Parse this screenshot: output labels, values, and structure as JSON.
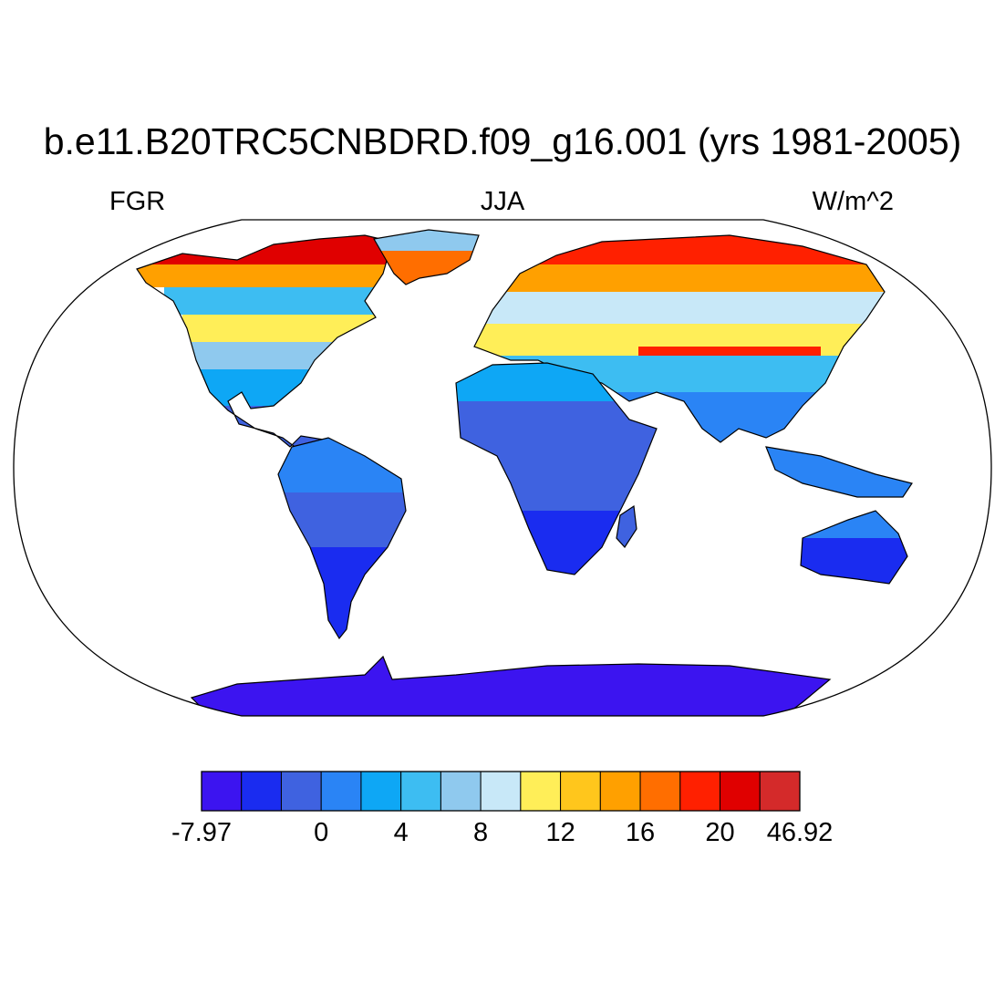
{
  "header": {
    "title": "b.e11.B20TRC5CNBDRD.f09_g16.001 (yrs 1981-2005)",
    "left_label": "FGR",
    "center_label": "JJA",
    "right_label": "W/m^2"
  },
  "colorbar": {
    "colors": [
      "#3c14f0",
      "#1a2cf0",
      "#3f62e0",
      "#2a84f5",
      "#0ea7f5",
      "#3dbdf2",
      "#8fc9ee",
      "#c8e8f8",
      "#ffee58",
      "#ffc61c",
      "#ffa000",
      "#ff6e00",
      "#ff2000",
      "#e00000",
      "#d42a2a"
    ],
    "tick_labels": [
      {
        "text": "-7.97",
        "slot": 0
      },
      {
        "text": "0",
        "slot": 3
      },
      {
        "text": "4",
        "slot": 5
      },
      {
        "text": "8",
        "slot": 7
      },
      {
        "text": "12",
        "slot": 9
      },
      {
        "text": "16",
        "slot": 11
      },
      {
        "text": "20",
        "slot": 13
      },
      {
        "text": "46.92",
        "slot": 15
      }
    ]
  },
  "map": {
    "projection": "Robinson",
    "field": "FGR",
    "season": "JJA",
    "units": "W/m^2",
    "range": [
      -7.97,
      46.92
    ]
  }
}
